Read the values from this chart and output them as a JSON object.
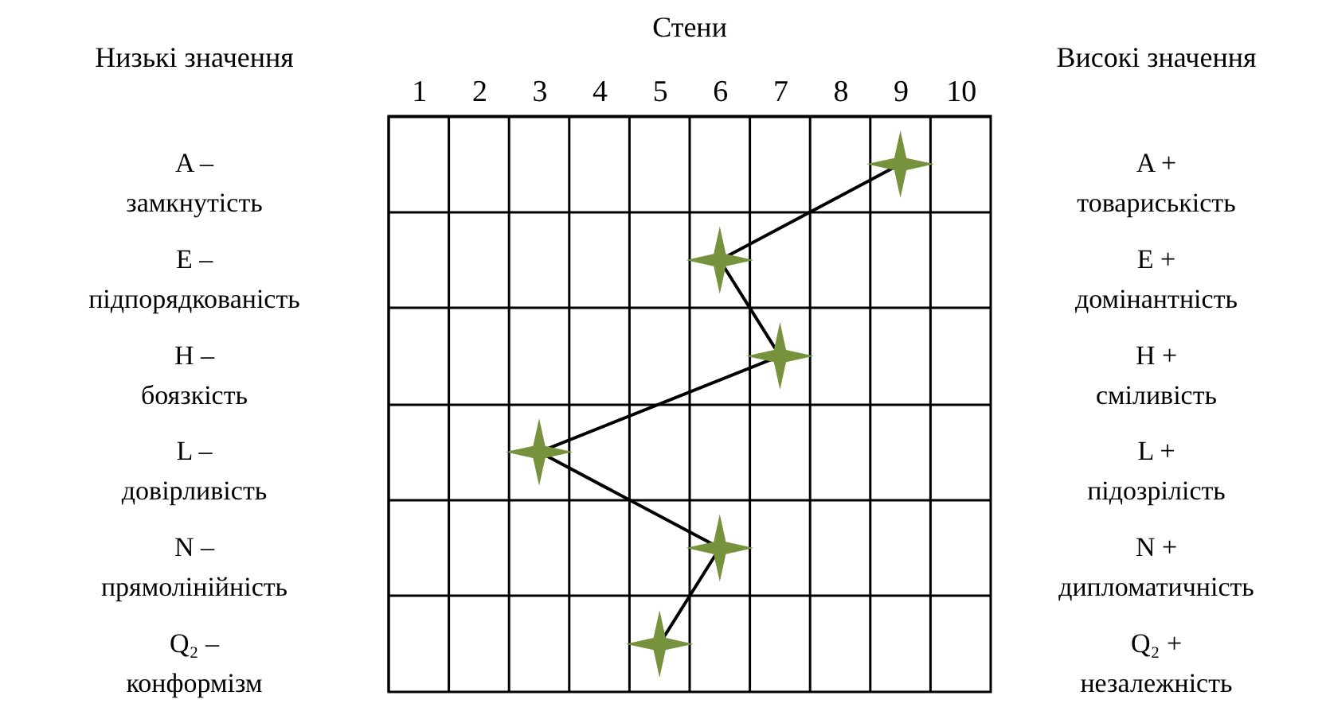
{
  "chart_data": {
    "type": "line",
    "orientation": "horizontal",
    "title": "Стени",
    "ylabel": "Низькі значення",
    "y2label": "Високі значення",
    "categories": [
      "A –\nзамкнутість",
      "E –\nпідпорядкованість",
      "H –\nбоязкість",
      "L –\nдовірливість",
      "N –\nпрямолінійність",
      "Q₂ –\nконформізм"
    ],
    "y2_categories": [
      "A +\nтовариськість",
      "E +\nдомінантність",
      "H +\nсміливість",
      "L +\nпідозрілість",
      "N +\nдипломатичність",
      "Q₂ +\nнезалежність"
    ],
    "series": [
      {
        "color": "#76923c",
        "values": [
          9,
          6,
          7,
          3,
          6,
          5
        ]
      }
    ],
    "xlim": [
      0.5,
      10.5
    ],
    "xticks": [
      1,
      2,
      3,
      4,
      5,
      6,
      7,
      8,
      9,
      10
    ],
    "grid": true,
    "marker": "star",
    "line_style": "solid"
  }
}
